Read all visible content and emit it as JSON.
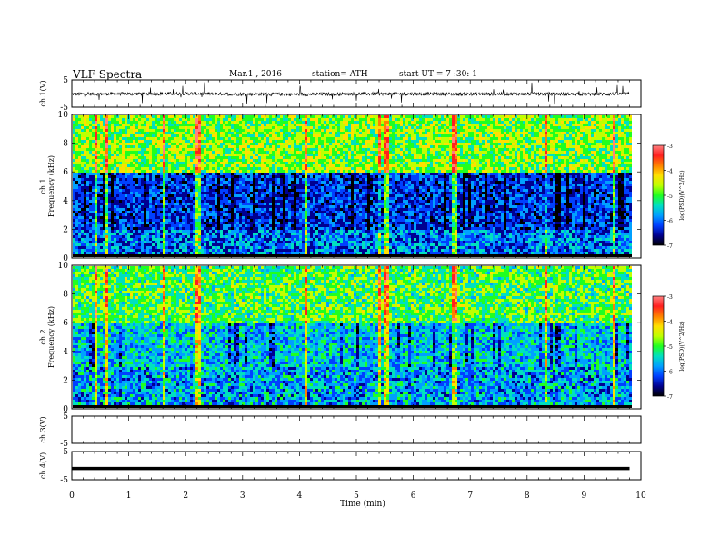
{
  "header": {
    "title": "VLF Spectra",
    "date": "Mar.1 , 2016",
    "station": "station= ATH",
    "start_ut": "start UT = 7 :30: 1"
  },
  "colorbar": {
    "label": "log(PSD)(V^2/Hz)",
    "ticks": [
      "-3",
      "-4",
      "-5",
      "-6",
      "-7"
    ],
    "colors": [
      "#ff8080",
      "#ff2020",
      "#ff8000",
      "#ffe000",
      "#c0ff00",
      "#20ff20",
      "#00e0c0",
      "#00a0ff",
      "#0040ff",
      "#000090",
      "#000000"
    ]
  },
  "chart_data": [
    {
      "type": "line",
      "id": "ch1",
      "ylabel": "ch.1(V)",
      "ylim": [
        -5,
        5
      ],
      "yticks": [
        "5",
        "-5"
      ],
      "x": [
        0,
        1,
        2,
        3,
        4,
        5,
        6,
        7,
        8,
        9,
        9.8
      ],
      "values": [
        -0.2,
        -0.1,
        0.0,
        -0.2,
        -0.3,
        -0.1,
        -0.1,
        -0.2,
        -0.1,
        -0.2,
        -0.1
      ],
      "xlim": [
        0,
        10
      ]
    },
    {
      "type": "heatmap",
      "id": "ch1-spectrogram",
      "ylabel": "ch.1\nFrequency (kHz)",
      "ylim": [
        0,
        10
      ],
      "yticks": [
        "10",
        "8",
        "6",
        "4",
        "2",
        "0"
      ],
      "xlim": [
        0,
        10
      ],
      "data_end_min": 9.8,
      "zlim": [
        -7,
        -3
      ],
      "spikes_min": [
        0.4,
        0.6,
        1.6,
        2.2,
        4.1,
        5.4,
        5.5,
        6.7,
        8.3,
        9.5
      ]
    },
    {
      "type": "heatmap",
      "id": "ch2-spectrogram",
      "ylabel": "ch.2\nFrequency (kHz)",
      "ylim": [
        0,
        10
      ],
      "yticks": [
        "10",
        "8",
        "6",
        "4",
        "2",
        "0"
      ],
      "xlim": [
        0,
        10
      ],
      "data_end_min": 9.8,
      "zlim": [
        -7,
        -3
      ],
      "spikes_min": [
        0.4,
        0.6,
        1.6,
        2.2,
        4.1,
        5.4,
        5.5,
        6.7,
        8.3,
        9.5
      ]
    },
    {
      "type": "line",
      "id": "ch3",
      "ylabel": "ch.3(V)",
      "ylim": [
        -5,
        5
      ],
      "yticks": [
        "5",
        "-5"
      ],
      "x": [],
      "values": [],
      "xlim": [
        0,
        10
      ]
    },
    {
      "type": "line",
      "id": "ch4",
      "ylabel": "ch.4(V)",
      "ylim": [
        -5,
        5
      ],
      "yticks": [
        "5",
        "-5"
      ],
      "x": [
        0,
        9.8
      ],
      "values": [
        -1,
        -1
      ],
      "xlim": [
        0,
        10
      ]
    }
  ],
  "x_axis": {
    "label": "Time (min)",
    "ticks": [
      "0",
      "1",
      "2",
      "3",
      "4",
      "5",
      "6",
      "7",
      "8",
      "9",
      "10"
    ]
  }
}
